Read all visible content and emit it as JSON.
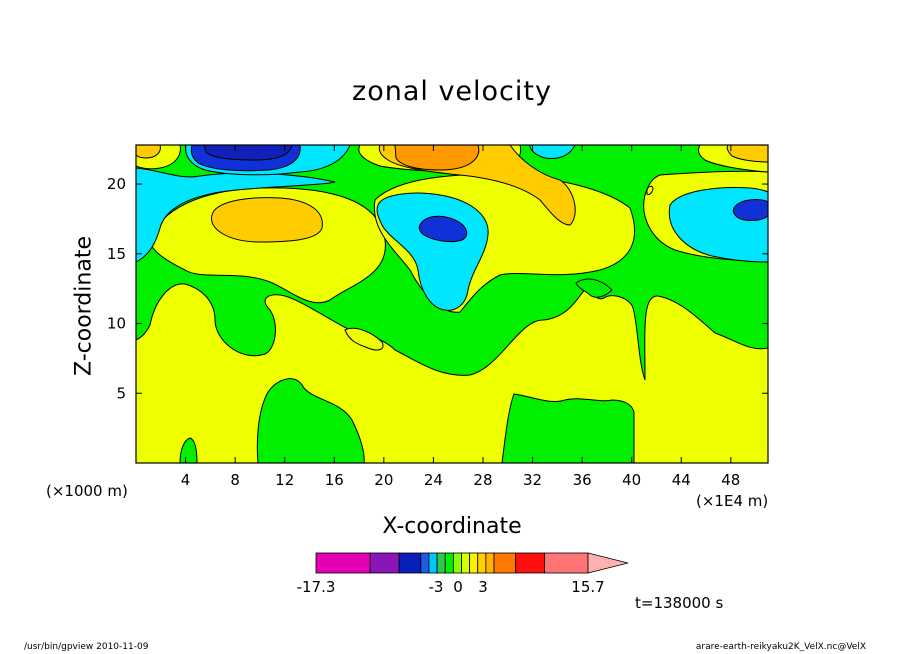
{
  "chart_data": {
    "type": "heatmap",
    "title": "zonal velocity",
    "xlabel": "X-coordinate",
    "ylabel": "Z-coordinate",
    "x_unit_left": "(×1000 m)",
    "x_unit_right": "(×1E4 m)",
    "xlim": [
      0,
      51
    ],
    "ylim": [
      0,
      22.8
    ],
    "xticks": [
      4,
      8,
      12,
      16,
      20,
      24,
      28,
      32,
      36,
      40,
      44,
      48
    ],
    "yticks": [
      5,
      10,
      15,
      20
    ],
    "grid": false,
    "field_description": "contour-filled zonal velocity",
    "features": [
      {
        "kind": "negative core",
        "level_min": -17.3,
        "x": 10,
        "z": 22,
        "color": "#1020b8"
      },
      {
        "kind": "negative core",
        "level_min": -6,
        "x": 25,
        "z": 17,
        "color": "#1030d8"
      },
      {
        "kind": "negative core",
        "level_min": -6,
        "x": 49,
        "z": 18.5,
        "color": "#1030d8"
      },
      {
        "kind": "positive core",
        "level_max": 6,
        "x": 24,
        "z": 22,
        "color": "#ff9900"
      },
      {
        "kind": "positive core",
        "level_max": 6,
        "x": 10,
        "z": 17.6,
        "color": "#ffa800"
      }
    ],
    "colorbar": {
      "tick_labels": [
        "-17.3",
        "-3",
        "0",
        "3",
        "15.7"
      ],
      "min": -17.3,
      "max": 15.7,
      "colors": [
        "#e600b4",
        "#8a16b8",
        "#0a1fb8",
        "#1a5ce8",
        "#00c8ff",
        "#2ec84c",
        "#00f000",
        "#8aff00",
        "#d8ff00",
        "#ffee00",
        "#ffd000",
        "#ffb400",
        "#ff7800",
        "#ff1010",
        "#ff7575",
        "#ffb0b0"
      ]
    },
    "palette": {
      "yellow": "#eeff00",
      "green": "#00f000",
      "cyan": "#00e6ff",
      "blue": "#1030d8",
      "navy": "#1020b8",
      "gold": "#ffcc00",
      "orange": "#ff9900"
    }
  },
  "annotations": {
    "time_label": "t=138000 s"
  },
  "footer": {
    "left": "/usr/bin/gpview   2010-11-09",
    "right": "arare-earth-reikyaku2K_VelX.nc@VelX"
  }
}
